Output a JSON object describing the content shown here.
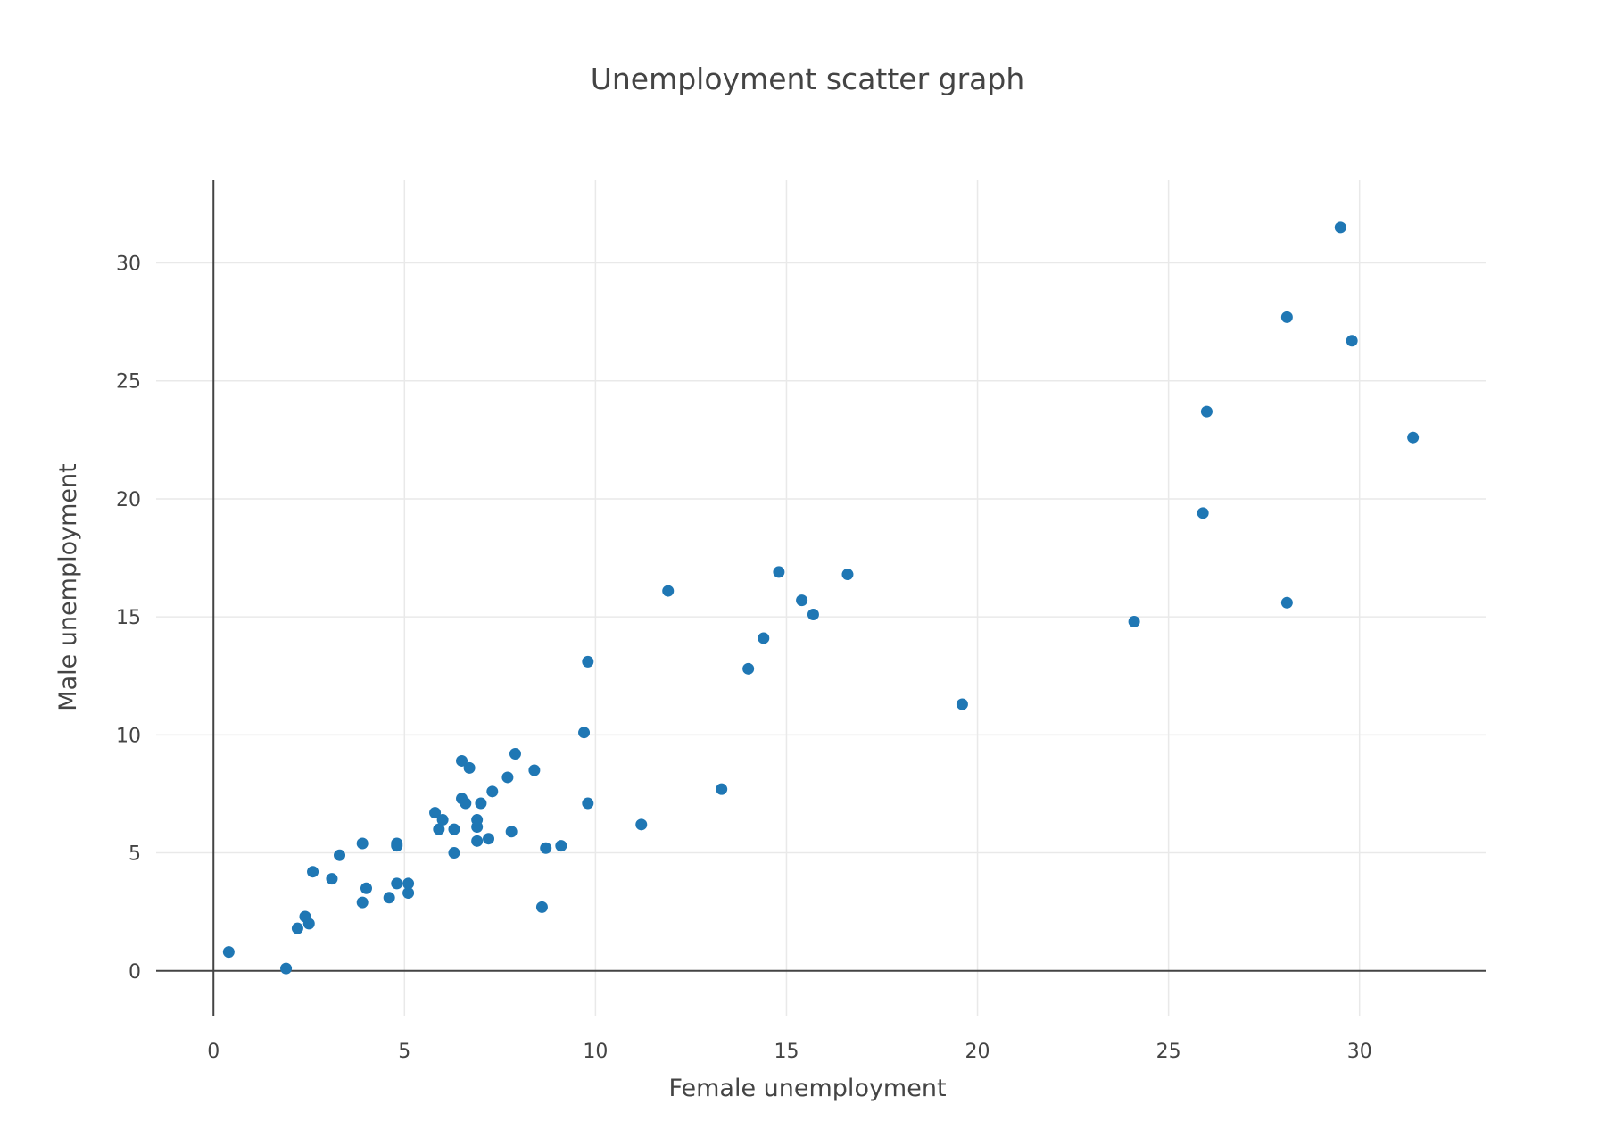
{
  "chart_data": {
    "type": "scatter",
    "title": "Unemployment scatter graph",
    "xlabel": "Female unemployment",
    "ylabel": "Male unemployment",
    "xlim": [
      -1.5,
      33.3
    ],
    "ylim": [
      -1.9,
      33.5
    ],
    "xticks": [
      0,
      5,
      10,
      15,
      20,
      25,
      30
    ],
    "yticks": [
      0,
      5,
      10,
      15,
      20,
      25,
      30
    ],
    "grid": true,
    "legend": "none",
    "marker_color": "#1f77b4",
    "series": [
      {
        "x": [
          0.4,
          1.9,
          2.2,
          2.4,
          2.5,
          2.6,
          3.1,
          3.3,
          3.9,
          3.9,
          4.0,
          4.6,
          4.8,
          4.8,
          4.8,
          5.1,
          5.1,
          5.8,
          5.9,
          6.0,
          6.3,
          6.3,
          6.5,
          6.5,
          6.6,
          6.7,
          6.9,
          6.9,
          6.9,
          7.0,
          7.2,
          7.3,
          7.7,
          7.8,
          7.9,
          8.4,
          8.6,
          8.7,
          9.1,
          9.7,
          9.8,
          9.8,
          11.2,
          11.9,
          13.3,
          14.0,
          14.4,
          14.8,
          15.4,
          15.7,
          16.6,
          19.6,
          24.1,
          25.9,
          26.0,
          28.1,
          28.1,
          29.5,
          29.8,
          31.4
        ],
        "y": [
          0.8,
          0.1,
          1.8,
          2.3,
          2.0,
          4.2,
          3.9,
          4.9,
          2.9,
          5.4,
          3.5,
          3.1,
          3.7,
          5.3,
          5.4,
          3.3,
          3.7,
          6.7,
          6.0,
          6.4,
          5.0,
          6.0,
          7.3,
          8.9,
          7.1,
          8.6,
          5.5,
          6.1,
          6.4,
          7.1,
          5.6,
          7.6,
          8.2,
          5.9,
          9.2,
          8.5,
          2.7,
          5.2,
          5.3,
          10.1,
          7.1,
          13.1,
          6.2,
          16.1,
          7.7,
          12.8,
          14.1,
          16.9,
          15.7,
          15.1,
          16.8,
          11.3,
          14.8,
          19.4,
          23.7,
          15.6,
          27.7,
          31.5,
          26.7,
          22.6
        ]
      }
    ]
  }
}
